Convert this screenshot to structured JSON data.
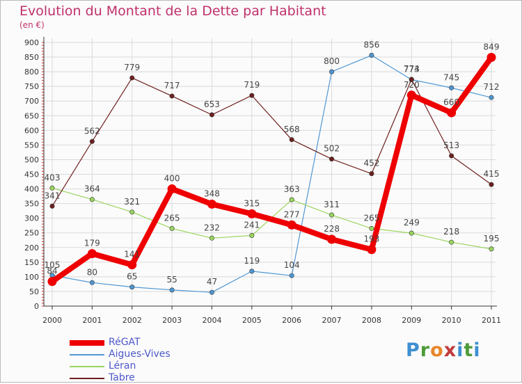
{
  "title": "Evolution du Montant de la Dette par Habitant",
  "unit_label": "(en €)",
  "logo": {
    "text": "Proxiti",
    "letters": [
      "P",
      "r",
      "o",
      "x",
      "i",
      "t",
      "i"
    ],
    "colors": [
      "#3d8fd1",
      "#4e9a3a",
      "#e8862a",
      "#c03a3a",
      "#3d8fd1",
      "#4e9a3a",
      "#3d8fd1"
    ]
  },
  "chart_data": {
    "type": "line",
    "title": "Evolution du Montant de la Dette par Habitant",
    "ylabel": "(en €)",
    "xlabel": "",
    "ylim": [
      0,
      900
    ],
    "y_ticks": [
      0,
      50,
      100,
      150,
      200,
      250,
      300,
      350,
      400,
      450,
      500,
      550,
      600,
      650,
      700,
      750,
      800,
      850,
      900
    ],
    "categories": [
      "2000",
      "2001",
      "2002",
      "2003",
      "2004",
      "2005",
      "2006",
      "2007",
      "2008",
      "2009",
      "2010",
      "2011"
    ],
    "grid": true,
    "legend_position": "bottom-left",
    "series": [
      {
        "name": "RéGAT",
        "color": "#ee0000",
        "values": [
          84,
          179,
          141,
          400,
          348,
          315,
          277,
          228,
          193,
          720,
          660,
          849
        ],
        "labels": [
          "84",
          "179",
          "141",
          "400",
          "348",
          "315",
          "277",
          "228",
          "193",
          "720",
          "660",
          "849"
        ]
      },
      {
        "name": "Aigues-Vives",
        "color": "#4f97d3",
        "values": [
          105,
          80,
          65,
          55,
          47,
          119,
          104,
          800,
          856,
          773,
          745,
          712
        ],
        "labels": [
          "105",
          "80",
          "65",
          "55",
          "47",
          "119",
          "104",
          "800",
          "856",
          "773",
          "745",
          "712"
        ]
      },
      {
        "name": "Léran",
        "color": "#9ad65e",
        "values": [
          403,
          364,
          321,
          265,
          232,
          241,
          363,
          311,
          265,
          249,
          218,
          195
        ],
        "labels": [
          "403",
          "364",
          "321",
          "265",
          "232",
          "241",
          "363",
          "311",
          "265",
          "249",
          "218",
          "195"
        ]
      },
      {
        "name": "Tabre",
        "color": "#6e1f1f",
        "values": [
          341,
          562,
          779,
          717,
          653,
          719,
          568,
          502,
          452,
          774,
          513,
          415
        ],
        "labels": [
          "341",
          "562",
          "779",
          "717",
          "653",
          "719",
          "568",
          "502",
          "452",
          "774",
          "513",
          "415"
        ]
      }
    ]
  }
}
